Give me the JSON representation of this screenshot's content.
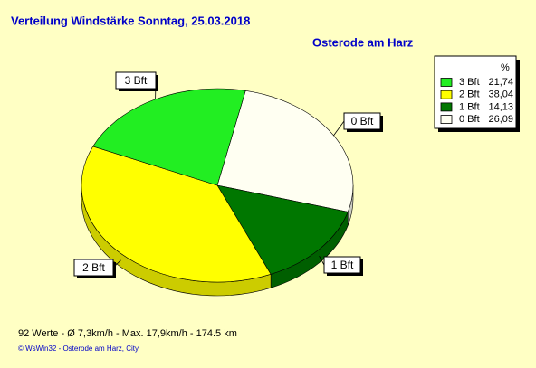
{
  "chart_data": {
    "type": "pie",
    "title": "Verteilung Windstärke  Sonntag, 25.03.2018",
    "subtitle": "Osterode am Harz",
    "categories": [
      "3 Bft",
      "2 Bft",
      "1 Bft",
      "0 Bft"
    ],
    "values": [
      21.74,
      38.04,
      14.13,
      26.09
    ],
    "value_labels": [
      "21,74",
      "38,04",
      "14,13",
      "26,09"
    ],
    "colors": [
      "#22ee22",
      "#ffff00",
      "#007700",
      "#fffff2"
    ],
    "legend_header": "%",
    "legend": "top-right",
    "footer": "92 Werte   -   Ø 7,3km/h  -  Max. 17,9km/h   -   174.5 km",
    "credit": "© WsWin32  -  Osterode am Harz, City"
  }
}
